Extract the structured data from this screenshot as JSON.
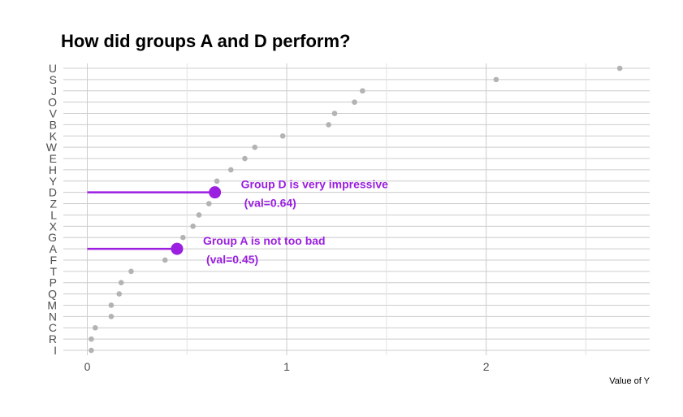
{
  "chart_data": {
    "type": "scatter",
    "title": "How did groups A and D perform?",
    "xlabel": "Value of Y",
    "ylabel": "",
    "xlim": [
      -0.12,
      2.82
    ],
    "xticks": [
      0,
      1,
      2
    ],
    "grid": true,
    "categories": [
      "U",
      "S",
      "J",
      "O",
      "V",
      "B",
      "K",
      "W",
      "E",
      "H",
      "Y",
      "D",
      "Z",
      "L",
      "X",
      "G",
      "A",
      "F",
      "T",
      "P",
      "Q",
      "M",
      "N",
      "C",
      "R",
      "I"
    ],
    "values": [
      2.67,
      2.05,
      1.38,
      1.34,
      1.24,
      1.21,
      0.98,
      0.84,
      0.79,
      0.72,
      0.65,
      0.64,
      0.61,
      0.56,
      0.53,
      0.48,
      0.45,
      0.39,
      0.22,
      0.17,
      0.16,
      0.12,
      0.12,
      0.04,
      0.02,
      0.02
    ],
    "highlight": [
      {
        "category": "D",
        "value": 0.64,
        "line1": "Group D is very impressive",
        "line2": "(val=0.64)"
      },
      {
        "category": "A",
        "value": 0.45,
        "line1": "Group A is not too bad",
        "line2": "(val=0.45)"
      }
    ],
    "colors": {
      "point": "#b3b3b3",
      "highlight": "#9a1fe0",
      "grid": "#cccccc"
    }
  }
}
